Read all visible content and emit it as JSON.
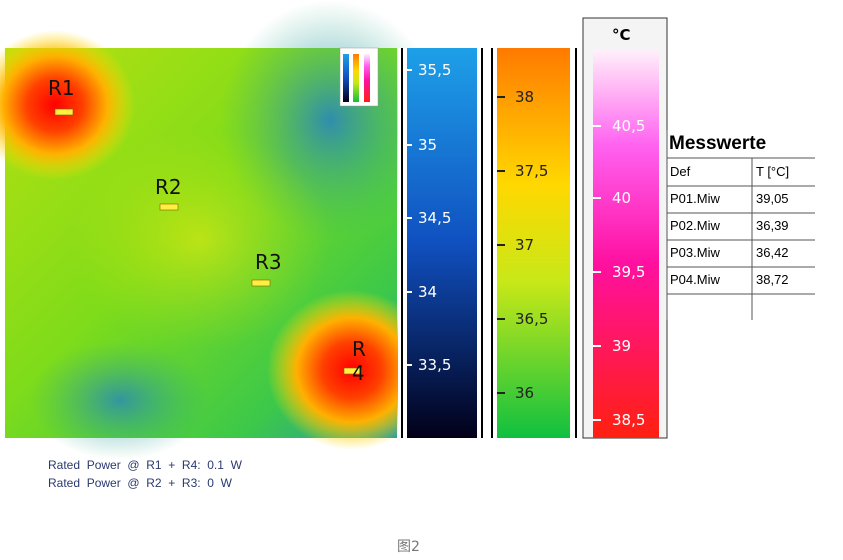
{
  "image": {
    "region_labels": [
      "R1",
      "R2",
      "R3",
      "R4"
    ]
  },
  "scales": [
    {
      "ticks": [
        "35,5",
        "35",
        "34,5",
        "34",
        "33,5"
      ]
    },
    {
      "ticks": [
        "38",
        "37,5",
        "37",
        "36,5",
        "36"
      ]
    },
    {
      "unit": "°C",
      "ticks": [
        "40,5",
        "40",
        "39,5",
        "39",
        "38,5"
      ]
    }
  ],
  "table": {
    "title": "Messwerte",
    "header": [
      "Def",
      "T [°C]"
    ],
    "rows": [
      [
        "P01.Miw",
        "39,05"
      ],
      [
        "P02.Miw",
        "36,39"
      ],
      [
        "P03.Miw",
        "36,42"
      ],
      [
        "P04.Miw",
        "38,72"
      ]
    ]
  },
  "captions": [
    "Rated  Power  @  R1  +  R4:  0.1  W",
    "Rated  Power  @  R2  +  R3:  0  W"
  ],
  "figure_label": "图2"
}
